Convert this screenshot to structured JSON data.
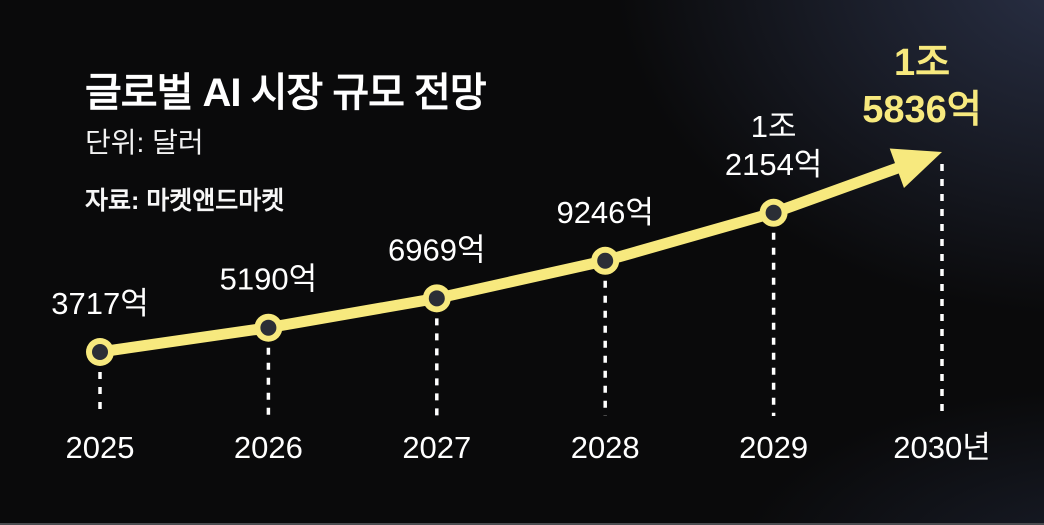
{
  "header": {
    "title": "글로벌 AI 시장 규모 전망",
    "unit": "단위: 달러",
    "source": "자료: 마켓앤드마켓"
  },
  "chart_data": {
    "type": "line",
    "title": "글로벌 AI 시장 규모 전망",
    "unit_note": "단위: 달러",
    "source": "자료: 마켓앤드마켓",
    "categories": [
      "2025",
      "2026",
      "2027",
      "2028",
      "2029",
      "2030년"
    ],
    "values": [
      3717,
      5190,
      6969,
      9246,
      12154,
      15836
    ],
    "value_labels": [
      [
        "3717억"
      ],
      [
        "5190억"
      ],
      [
        "6969억"
      ],
      [
        "9246억"
      ],
      [
        "1조",
        "2154억"
      ],
      [
        "1조",
        "5836억"
      ]
    ],
    "highlight_index": 5,
    "legend": "none",
    "grid": false,
    "xlabel": "",
    "ylabel": "",
    "colors": {
      "line": "#f7e97e",
      "marker_ring": "#f7e97e",
      "marker_center": "#2b2e36",
      "value_label": "#ffffff",
      "highlight_label": "#f7e97e",
      "year_label": "#ffffff",
      "guide_dash": "#ffffff",
      "background": "#0a0a0b"
    }
  }
}
